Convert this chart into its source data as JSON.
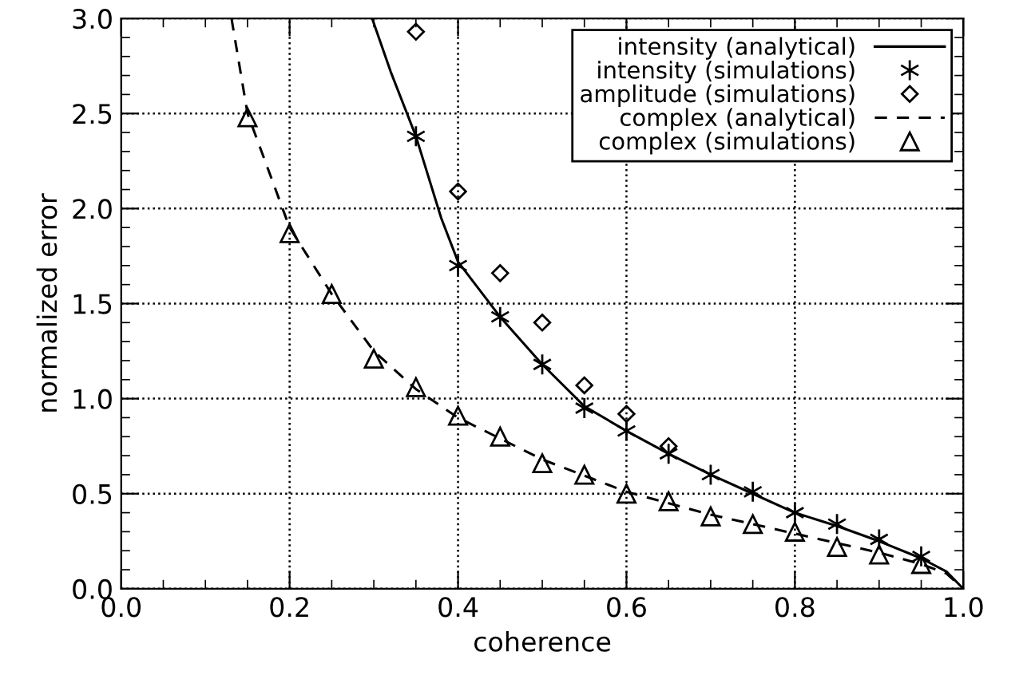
{
  "chart_data": {
    "type": "line",
    "xlabel": "coherence",
    "ylabel": "normalized error",
    "xlim": [
      0,
      1
    ],
    "ylim": [
      0,
      3
    ],
    "xticks": [
      {
        "value": 0,
        "label": "0.0"
      },
      {
        "value": 0.05,
        "label": null
      },
      {
        "value": 0.1,
        "label": null
      },
      {
        "value": 0.15,
        "label": null
      },
      {
        "value": 0.2,
        "label": "0.2"
      },
      {
        "value": 0.25,
        "label": null
      },
      {
        "value": 0.3,
        "label": null
      },
      {
        "value": 0.35,
        "label": null
      },
      {
        "value": 0.4,
        "label": "0.4"
      },
      {
        "value": 0.45,
        "label": null
      },
      {
        "value": 0.5,
        "label": null
      },
      {
        "value": 0.55,
        "label": null
      },
      {
        "value": 0.6,
        "label": "0.6"
      },
      {
        "value": 0.65,
        "label": null
      },
      {
        "value": 0.7,
        "label": null
      },
      {
        "value": 0.75,
        "label": null
      },
      {
        "value": 0.8,
        "label": "0.8"
      },
      {
        "value": 0.85,
        "label": null
      },
      {
        "value": 0.9,
        "label": null
      },
      {
        "value": 0.95,
        "label": null
      },
      {
        "value": 1,
        "label": "1.0"
      }
    ],
    "yticks": [
      {
        "value": 0,
        "label": "0.0"
      },
      {
        "value": 0.1,
        "label": null
      },
      {
        "value": 0.2,
        "label": null
      },
      {
        "value": 0.3,
        "label": null
      },
      {
        "value": 0.4,
        "label": null
      },
      {
        "value": 0.5,
        "label": "0.5"
      },
      {
        "value": 0.6,
        "label": null
      },
      {
        "value": 0.7,
        "label": null
      },
      {
        "value": 0.8,
        "label": null
      },
      {
        "value": 0.9,
        "label": null
      },
      {
        "value": 1,
        "label": "1.0"
      },
      {
        "value": 1.1,
        "label": null
      },
      {
        "value": 1.2,
        "label": null
      },
      {
        "value": 1.3,
        "label": null
      },
      {
        "value": 1.4,
        "label": null
      },
      {
        "value": 1.5,
        "label": "1.5"
      },
      {
        "value": 1.6,
        "label": null
      },
      {
        "value": 1.7,
        "label": null
      },
      {
        "value": 1.8,
        "label": null
      },
      {
        "value": 1.9,
        "label": null
      },
      {
        "value": 2,
        "label": "2.0"
      },
      {
        "value": 2.1,
        "label": null
      },
      {
        "value": 2.2,
        "label": null
      },
      {
        "value": 2.3,
        "label": null
      },
      {
        "value": 2.4,
        "label": null
      },
      {
        "value": 2.5,
        "label": "2.5"
      },
      {
        "value": 2.6,
        "label": null
      },
      {
        "value": 2.7,
        "label": null
      },
      {
        "value": 2.8,
        "label": null
      },
      {
        "value": 2.9,
        "label": null
      },
      {
        "value": 3,
        "label": "3.0"
      }
    ],
    "grid": true,
    "legend": "top right",
    "series": [
      {
        "name": "intensity (analytical)",
        "line_style": "solid",
        "marker": "none",
        "color": "#000000",
        "x": [
          0.298,
          0.32,
          0.35,
          0.38,
          0.4,
          0.45,
          0.5,
          0.55,
          0.6,
          0.65,
          0.7,
          0.75,
          0.8,
          0.85,
          0.9,
          0.95,
          0.98,
          1.0
        ],
        "values": [
          3.0,
          2.72,
          2.38,
          1.95,
          1.72,
          1.43,
          1.18,
          0.96,
          0.83,
          0.71,
          0.6,
          0.5,
          0.4,
          0.33,
          0.25,
          0.16,
          0.09,
          0.0
        ]
      },
      {
        "name": "intensity (simulations)",
        "type": "scatter",
        "marker": "cross",
        "color": "#000000",
        "x": [
          0.35,
          0.4,
          0.45,
          0.5,
          0.55,
          0.6,
          0.65,
          0.7,
          0.75,
          0.8,
          0.85,
          0.9,
          0.95
        ],
        "values": [
          2.38,
          1.7,
          1.43,
          1.18,
          0.95,
          0.83,
          0.71,
          0.6,
          0.51,
          0.4,
          0.34,
          0.26,
          0.17
        ]
      },
      {
        "name": "amplitude (simulations)",
        "type": "scatter",
        "marker": "diamond",
        "color": "#000000",
        "x": [
          0.35,
          0.4,
          0.45,
          0.5,
          0.55,
          0.6,
          0.65
        ],
        "values": [
          2.93,
          2.09,
          1.66,
          1.4,
          1.07,
          0.92,
          0.75
        ]
      },
      {
        "name": "complex (analytical)",
        "line_style": "dashed",
        "marker": "none",
        "color": "#000000",
        "x": [
          0.131,
          0.15,
          0.2,
          0.25,
          0.3,
          0.35,
          0.4,
          0.5,
          0.6,
          0.7,
          0.8,
          0.9,
          0.95,
          0.98,
          1.0
        ],
        "values": [
          3.0,
          2.5,
          1.9,
          1.55,
          1.25,
          1.05,
          0.9,
          0.68,
          0.51,
          0.39,
          0.29,
          0.19,
          0.13,
          0.08,
          0.0
        ]
      },
      {
        "name": "complex (simulations)",
        "type": "scatter",
        "marker": "triangle",
        "color": "#000000",
        "x": [
          0.15,
          0.2,
          0.25,
          0.3,
          0.35,
          0.4,
          0.45,
          0.5,
          0.55,
          0.6,
          0.65,
          0.7,
          0.75,
          0.8,
          0.85,
          0.9,
          0.95
        ],
        "values": [
          2.48,
          1.87,
          1.55,
          1.21,
          1.06,
          0.91,
          0.8,
          0.66,
          0.6,
          0.5,
          0.46,
          0.38,
          0.34,
          0.3,
          0.22,
          0.18,
          0.13
        ]
      }
    ]
  }
}
